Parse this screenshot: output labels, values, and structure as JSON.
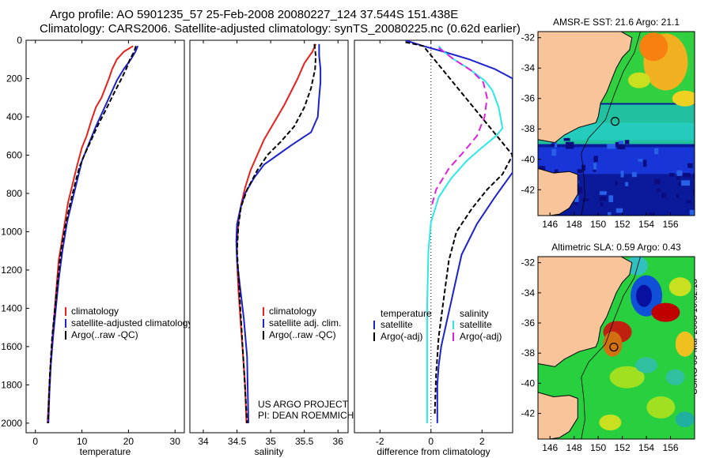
{
  "header": {
    "line1": "Argo profile: AO 5901235_57 25-Feb-2008 20080227_124 37.544S 151.438E",
    "line2": "Climatology: CARS2006. Satellite-adjusted climatology: synTS_20080225.nc (0.62d earlier)"
  },
  "colors": {
    "climatology": "#e8201c",
    "satellite": "#1c22cc",
    "argo": "#000000",
    "cyan": "#2ee8e8",
    "magenta": "#e020e0",
    "land": "#f9c49a"
  },
  "credit": {
    "line1": "US ARGO PROJECT",
    "line2": "PI: DEAN ROEMMICH"
  },
  "side_label": "CSIRO 05-Mar-2008 10:32:18",
  "chart_data": [
    {
      "type": "line",
      "name": "temperature-profile",
      "xlabel": "temperature",
      "xlim": [
        -2,
        32
      ],
      "ylim": [
        0,
        2050
      ],
      "xticks": [
        0,
        10,
        20,
        30
      ],
      "yticks": [
        0,
        200,
        400,
        600,
        800,
        1000,
        1200,
        1400,
        1600,
        1800,
        2000
      ],
      "yreversed": true,
      "series": [
        {
          "name": "climatology",
          "color": "#e8201c",
          "dash": "",
          "x": [
            21.0,
            19.0,
            17.5,
            16.5,
            15.8,
            15.0,
            14.2,
            13.0,
            12.0,
            11.0,
            10.0,
            9.0,
            8.0,
            7.0,
            6.0,
            5.0,
            4.5,
            4.0,
            3.5,
            3.0,
            2.6
          ],
          "y": [
            30,
            60,
            100,
            150,
            200,
            250,
            300,
            350,
            420,
            500,
            560,
            650,
            750,
            850,
            1000,
            1150,
            1300,
            1450,
            1600,
            1800,
            2000
          ]
        },
        {
          "name": "satellite-adjusted climatology",
          "color": "#1c22cc",
          "dash": "",
          "x": [
            22.0,
            21.5,
            20.5,
            19.0,
            17.5,
            16.0,
            14.5,
            13.0,
            11.5,
            10.0,
            9.5,
            8.8,
            7.8,
            6.8,
            5.8,
            5.0,
            4.4,
            3.8,
            3.3,
            3.0,
            2.8
          ],
          "y": [
            30,
            60,
            100,
            150,
            210,
            290,
            370,
            450,
            540,
            630,
            680,
            750,
            850,
            950,
            1100,
            1250,
            1400,
            1550,
            1700,
            1850,
            2000
          ]
        },
        {
          "name": "Argo(..raw -QC)",
          "color": "#000000",
          "dash": "6,3",
          "x": [
            21.6,
            21.2,
            20.3,
            19.5,
            18.3,
            16.8,
            15.2,
            13.5,
            12.0,
            10.5,
            9.5,
            8.6,
            7.5,
            6.5,
            5.5,
            4.8,
            4.2,
            3.6,
            3.1,
            2.7
          ],
          "y": [
            30,
            60,
            100,
            150,
            210,
            280,
            360,
            440,
            520,
            600,
            660,
            740,
            850,
            960,
            1100,
            1250,
            1400,
            1550,
            1750,
            2000
          ]
        }
      ],
      "legend": [
        "climatology",
        "satellite-adjusted climatology",
        "Argo(..raw -QC)"
      ]
    },
    {
      "type": "line",
      "name": "salinity-profile",
      "xlabel": "salinity",
      "xlim": [
        33.8,
        36.15
      ],
      "ylim": [
        0,
        2050
      ],
      "xticks": [
        34,
        34.5,
        35,
        35.5,
        36
      ],
      "yreversed": true,
      "series": [
        {
          "name": "climatology",
          "color": "#e8201c",
          "dash": "",
          "x": [
            35.67,
            35.62,
            35.5,
            35.4,
            35.3,
            35.2,
            35.1,
            35.0,
            34.9,
            34.8,
            34.7,
            34.62,
            34.56,
            34.52,
            34.5,
            34.5,
            34.52,
            34.55,
            34.58,
            34.62,
            34.64
          ],
          "y": [
            20,
            60,
            120,
            200,
            270,
            340,
            400,
            460,
            520,
            600,
            680,
            770,
            860,
            950,
            1050,
            1150,
            1300,
            1450,
            1600,
            1800,
            2000
          ]
        },
        {
          "name": "satellite adj. clim.",
          "color": "#1c22cc",
          "dash": "",
          "x": [
            35.72,
            35.72,
            35.74,
            35.74,
            35.72,
            35.7,
            35.6,
            35.3,
            35.1,
            34.9,
            34.75,
            34.62,
            34.55,
            34.5,
            34.49,
            34.5,
            34.55,
            34.6,
            34.65,
            34.67
          ],
          "y": [
            20,
            80,
            150,
            220,
            300,
            400,
            480,
            550,
            600,
            650,
            720,
            800,
            880,
            960,
            1050,
            1150,
            1300,
            1450,
            1650,
            2000
          ]
        },
        {
          "name": "Argo(..raw -QC)",
          "color": "#000000",
          "dash": "6,3",
          "x": [
            35.65,
            35.67,
            35.66,
            35.6,
            35.5,
            35.35,
            35.15,
            34.95,
            34.8,
            34.65,
            34.56,
            34.52,
            34.5,
            34.55,
            34.6,
            34.65
          ],
          "y": [
            20,
            80,
            150,
            250,
            350,
            450,
            530,
            600,
            680,
            780,
            870,
            970,
            1100,
            1400,
            1700,
            2000
          ]
        }
      ],
      "legend": [
        "climatology",
        "satellite adj. clim.",
        "Argo(..raw -QC)"
      ]
    },
    {
      "type": "line",
      "name": "difference-profile",
      "xlabel": "difference from climatology",
      "xlim": [
        -3,
        3.2
      ],
      "ylim": [
        0,
        2050
      ],
      "xticks": [
        -2,
        0,
        2
      ],
      "yreversed": true,
      "zero_line": true,
      "series": [
        {
          "name": "temperature satellite",
          "color": "#1c22cc",
          "dash": "",
          "x": [
            -1.0,
            -0.3,
            0.5,
            1.5,
            2.5,
            3.2,
            3.2,
            2.5,
            1.8,
            1.2,
            1.0,
            0.8,
            0.6,
            0.4,
            0.3,
            0.25,
            0.25
          ],
          "y": [
            0,
            30,
            60,
            100,
            150,
            200,
            690,
            820,
            960,
            1120,
            1240,
            1360,
            1480,
            1600,
            1700,
            1800,
            2000
          ]
        },
        {
          "name": "temperature Argo(-adj)",
          "color": "#000000",
          "dash": "6,3",
          "x": [
            -1.0,
            -0.3,
            3.2,
            2.8,
            2.2,
            1.6,
            1.0,
            0.7,
            0.5,
            0.3,
            0.2,
            0.15
          ],
          "y": [
            10,
            30,
            600,
            700,
            780,
            880,
            1000,
            1150,
            1350,
            1550,
            1750,
            1950
          ]
        },
        {
          "name": "salinity satellite",
          "color": "#2ee8e8",
          "dash": "",
          "x": [
            0.3,
            0.5,
            0.9,
            1.5,
            2.1,
            2.4,
            2.65,
            2.75,
            2.8,
            2.55,
            2.0,
            1.4,
            0.8,
            0.3,
            0.0,
            -0.1,
            -0.15,
            -0.15,
            -0.15
          ],
          "y": [
            30,
            60,
            100,
            150,
            210,
            260,
            350,
            420,
            460,
            500,
            560,
            630,
            720,
            820,
            950,
            1100,
            1400,
            1700,
            2000
          ]
        },
        {
          "name": "salinity Argo(-adj)",
          "color": "#e020e0",
          "dash": "9,5",
          "x": [
            0.3,
            0.9,
            1.6,
            2.05,
            2.2,
            2.1,
            1.8,
            1.3,
            0.7,
            0.2,
            0.0
          ],
          "y": [
            40,
            100,
            160,
            220,
            300,
            400,
            500,
            580,
            670,
            780,
            880
          ]
        }
      ],
      "legend_col1_title": "temperature",
      "legend_col2_title": "salinity",
      "legend_col1": [
        "satellite",
        "Argo(-adj)"
      ],
      "legend_col2": [
        "satellite",
        "Argo(-adj)"
      ]
    },
    {
      "type": "heatmap",
      "name": "sst-map",
      "title": "AMSR-E SST: 21.6  Argo: 21.1",
      "xlim": [
        145,
        158
      ],
      "ylim": [
        -43.7,
        -31.6
      ],
      "xticks": [
        146,
        148,
        150,
        152,
        154,
        156
      ],
      "yticks": [
        -32,
        -34,
        -36,
        -38,
        -40,
        -42
      ],
      "marker": [
        151.4,
        -37.5
      ]
    },
    {
      "type": "heatmap",
      "name": "sla-map",
      "title": "Altimetric SLA: 0.59  Argo: 0.43",
      "xlim": [
        145,
        158
      ],
      "ylim": [
        -43.7,
        -31.6
      ],
      "xticks": [
        146,
        148,
        150,
        152,
        154,
        156
      ],
      "yticks": [
        -32,
        -34,
        -36,
        -38,
        -40,
        -42
      ],
      "marker": [
        151.3,
        -37.6
      ]
    }
  ]
}
